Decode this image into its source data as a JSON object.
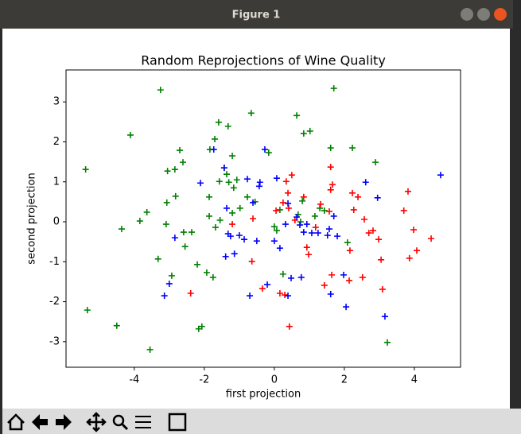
{
  "window": {
    "title": "Figure 1"
  },
  "chart_data": {
    "type": "scatter",
    "title": "Random Reprojections of Wine Quality",
    "xlabel": "first projection",
    "ylabel": "second projection",
    "xlim": [
      -5.95,
      5.32
    ],
    "ylim": [
      -3.64,
      3.8
    ],
    "xticks": [
      -4,
      -2,
      0,
      2,
      4
    ],
    "yticks": [
      -3,
      -2,
      -1,
      0,
      1,
      2,
      3
    ],
    "grid": false,
    "marker": "+",
    "series": [
      {
        "color": "#008000",
        "x": [
          -5.39,
          -5.34,
          -4.5,
          -4.36,
          -4.11,
          -3.84,
          -3.64,
          -3.55,
          -3.25,
          -3.32,
          -3.09,
          -3.07,
          -3.05,
          -2.93,
          -2.84,
          -2.82,
          -2.7,
          -2.61,
          -2.59,
          -2.55,
          -2.36,
          -2.2,
          -2.16,
          -2.07,
          -1.93,
          -1.86,
          -1.86,
          -1.84,
          -1.75,
          -1.7,
          -1.68,
          -1.59,
          -1.57,
          -1.55,
          -1.43,
          -1.36,
          -1.32,
          -1.3,
          -1.2,
          -1.2,
          -1.16,
          -1.07,
          -0.98,
          -0.66,
          -0.77,
          -0.55,
          -0.16,
          0.07,
          0.16,
          0.25,
          0.64,
          0.68,
          0.75,
          0.8,
          0.84,
          1.02,
          1.16,
          1.43,
          1.61,
          1.7,
          2.09,
          2.23,
          2.89,
          3.23,
          1.3,
          0.0
        ],
        "y": [
          1.31,
          -2.21,
          -2.6,
          -0.18,
          2.17,
          0.02,
          0.24,
          -3.2,
          3.3,
          -0.93,
          -0.06,
          0.48,
          1.27,
          -1.35,
          1.31,
          0.64,
          1.79,
          1.49,
          -0.26,
          -0.62,
          -0.26,
          -1.07,
          -2.68,
          -2.62,
          -1.27,
          0.14,
          0.62,
          1.81,
          -1.39,
          2.07,
          -0.14,
          2.49,
          1.01,
          0.04,
          1.35,
          1.19,
          2.39,
          0.99,
          1.65,
          0.22,
          0.85,
          1.05,
          0.34,
          2.72,
          0.62,
          0.5,
          1.73,
          -0.22,
          0.3,
          -1.31,
          2.66,
          0.18,
          0,
          0.52,
          2.21,
          2.27,
          0.14,
          0.28,
          1.85,
          3.34,
          -0.52,
          1.85,
          1.49,
          -3.02,
          0.34,
          -0.12
        ]
      },
      {
        "color": "#ff0000",
        "x": [
          -2.39,
          -1.2,
          -0.64,
          -0.61,
          -0.34,
          0.05,
          0.16,
          0.25,
          0.3,
          0.34,
          0.39,
          0.41,
          0.43,
          0.5,
          0.59,
          0.93,
          0.98,
          1.18,
          1.32,
          1.43,
          1.57,
          1.61,
          1.61,
          1.64,
          1.66,
          2.14,
          2.16,
          2.23,
          2.27,
          2.39,
          2.52,
          2.57,
          2.7,
          2.82,
          2.98,
          3.05,
          3.09,
          3.7,
          3.82,
          3.86,
          3.98,
          4.07,
          4.48,
          0.84
        ],
        "y": [
          -1.79,
          -0.06,
          -0.99,
          0.08,
          -1.67,
          0.28,
          -1.79,
          0.48,
          -1.83,
          1.01,
          0.72,
          0.34,
          -2.62,
          1.17,
          0.04,
          -0.64,
          -0.82,
          -0.14,
          0.44,
          -1.59,
          0.26,
          1.37,
          0.8,
          -1.33,
          0.93,
          -1.47,
          -0.72,
          0.72,
          0.3,
          0.62,
          -1.39,
          0.06,
          -0.28,
          -0.22,
          -0.44,
          -0.95,
          -1.69,
          0.28,
          0.76,
          -0.91,
          -0.2,
          -0.72,
          -0.42,
          0.62
        ]
      },
      {
        "color": "#0000ff",
        "x": [
          -3.14,
          -3.0,
          -2.84,
          -2.11,
          -1.73,
          -1.43,
          -1.39,
          -1.36,
          -1.32,
          -1.25,
          -1.14,
          -1.0,
          -0.86,
          -0.77,
          -0.7,
          -0.61,
          -0.5,
          -0.43,
          -0.41,
          -0.27,
          -0.2,
          0,
          0.07,
          0.16,
          0.32,
          0.39,
          0.48,
          0.64,
          0.73,
          0.77,
          0.84,
          0.93,
          1.07,
          1.25,
          1.52,
          1.57,
          1.61,
          1.7,
          1.8,
          1.98,
          2.05,
          2.61,
          2.95,
          3.16,
          4.75,
          0.39
        ],
        "y": [
          -1.85,
          -1.55,
          -0.4,
          0.97,
          1.81,
          1.35,
          -0.87,
          0.34,
          -0.3,
          -0.36,
          -0.8,
          -0.34,
          -0.44,
          1.07,
          -1.85,
          0.48,
          -0.48,
          0.89,
          0.99,
          1.81,
          -1.57,
          -0.48,
          1.09,
          -0.66,
          -0.06,
          -1.85,
          -1.41,
          0.12,
          -0.08,
          -1.39,
          -0.26,
          -0.06,
          -0.28,
          -0.28,
          -0.34,
          -0.18,
          -1.81,
          0.14,
          -0.36,
          -1.33,
          -2.13,
          0.99,
          0.6,
          -2.37,
          1.17,
          0.46
        ]
      }
    ]
  }
}
